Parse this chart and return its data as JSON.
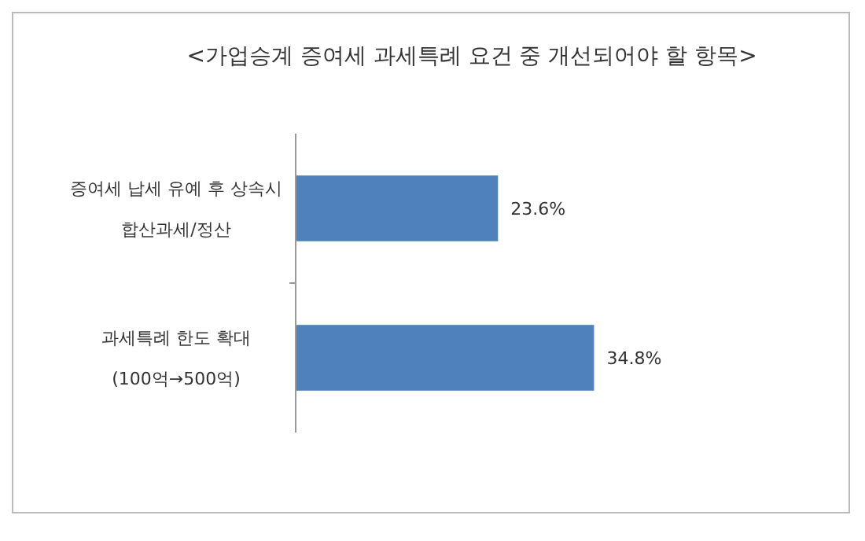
{
  "chart_data": {
    "type": "bar",
    "orientation": "horizontal",
    "title": "<가업승계 증여세 과세특례 요건 중 개선되어야 할 항목>",
    "categories": [
      "증여세 납세 유예 후 상속시\n합산과세/정산",
      "과세특례 한도 확대\n(100억→500억)"
    ],
    "values": [
      23.6,
      34.8
    ],
    "value_labels": [
      "23.6%",
      "34.8%"
    ],
    "color": "#4f81bd"
  }
}
